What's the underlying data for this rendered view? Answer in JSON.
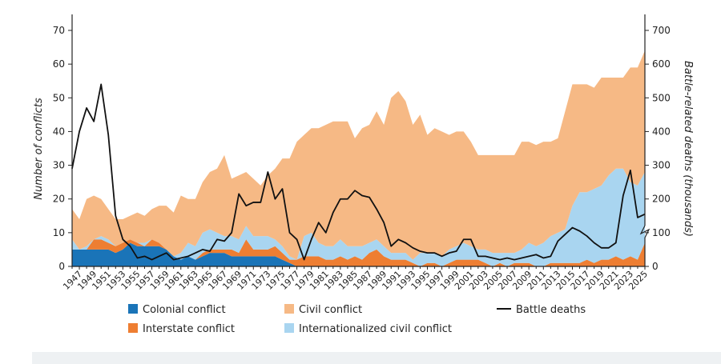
{
  "chart_data": {
    "type": "area",
    "ylabel": "Number of conflicts",
    "y2label": "Battle-related deaths (thousands)",
    "ylim": [
      0,
      70
    ],
    "y2lim": [
      0,
      700
    ],
    "yticks": [
      "0",
      "10",
      "20",
      "30",
      "40",
      "50",
      "60",
      "70"
    ],
    "y2ticks": [
      "0",
      "100",
      "200",
      "300",
      "400",
      "500",
      "600",
      "700"
    ],
    "x_tick_labels": [
      "1947",
      "1949",
      "1951",
      "1953",
      "1955",
      "1957",
      "1959",
      "1961",
      "1963",
      "1965",
      "1967",
      "1969",
      "1971",
      "1973",
      "1975",
      "1977",
      "1979",
      "1981",
      "1983",
      "1985",
      "1987",
      "1989",
      "1991",
      "1993",
      "1995",
      "1997",
      "1999",
      "2001",
      "2003",
      "2005",
      "2007",
      "2009",
      "2011",
      "2013",
      "2015",
      "2017",
      "2019",
      "2021",
      "2023",
      "2025"
    ],
    "x": [
      1946,
      1947,
      1948,
      1949,
      1950,
      1951,
      1952,
      1953,
      1954,
      1955,
      1956,
      1957,
      1958,
      1959,
      1960,
      1961,
      1962,
      1963,
      1964,
      1965,
      1966,
      1967,
      1968,
      1969,
      1970,
      1971,
      1972,
      1973,
      1974,
      1975,
      1976,
      1977,
      1978,
      1979,
      1980,
      1981,
      1982,
      1983,
      1984,
      1985,
      1986,
      1987,
      1988,
      1989,
      1990,
      1991,
      1992,
      1993,
      1994,
      1995,
      1996,
      1997,
      1998,
      1999,
      2000,
      2001,
      2002,
      2003,
      2004,
      2005,
      2006,
      2007,
      2008,
      2009,
      2010,
      2011,
      2012,
      2013,
      2014,
      2015,
      2016,
      2017,
      2018,
      2019,
      2020,
      2021,
      2022,
      2023,
      2024,
      2025
    ],
    "stacked": true,
    "series": [
      {
        "name": "Colonial conflict",
        "color": "#1a74b8",
        "values": [
          5,
          5,
          5,
          5,
          5,
          5,
          4,
          5,
          7,
          6,
          6,
          6,
          6,
          5,
          3,
          2,
          3,
          2,
          3,
          4,
          4,
          4,
          3,
          3,
          3,
          3,
          3,
          3,
          3,
          2,
          1,
          0,
          0,
          0,
          0,
          0,
          0,
          0,
          0,
          0,
          0,
          0,
          0,
          0,
          0,
          0,
          0,
          0,
          0,
          0,
          0,
          0,
          0,
          0,
          0,
          0,
          0,
          0,
          0,
          0,
          0,
          0,
          0,
          0,
          0,
          0,
          0,
          0,
          0,
          0,
          0,
          0,
          0,
          0,
          0,
          0,
          0,
          0,
          0,
          0
        ]
      },
      {
        "name": "Interstate conflict",
        "color": "#ee7e32",
        "values": [
          0,
          0,
          0,
          3,
          3,
          2,
          2,
          2,
          1,
          1,
          0,
          2,
          1,
          0,
          0,
          0,
          0,
          0,
          1,
          1,
          1,
          1,
          2,
          1,
          5,
          2,
          2,
          2,
          3,
          2,
          1,
          2,
          3,
          3,
          3,
          2,
          2,
          3,
          2,
          3,
          2,
          4,
          5,
          3,
          2,
          2,
          2,
          1,
          0,
          1,
          1,
          0,
          1,
          2,
          2,
          2,
          2,
          1,
          0,
          1,
          0,
          1,
          1,
          1,
          0,
          0,
          1,
          1,
          1,
          1,
          1,
          2,
          1,
          2,
          2,
          3,
          2,
          3,
          2,
          7
        ]
      },
      {
        "name": "Internationalized civil conflict",
        "color": "#a9d5f0",
        "values": [
          3,
          0,
          1,
          0,
          1,
          1,
          0,
          0,
          0,
          0,
          1,
          0,
          0,
          0,
          0,
          2,
          4,
          4,
          6,
          6,
          5,
          4,
          4,
          4,
          4,
          4,
          4,
          4,
          2,
          2,
          1,
          0,
          6,
          7,
          4,
          4,
          4,
          5,
          4,
          3,
          4,
          3,
          3,
          3,
          2,
          2,
          2,
          1,
          4,
          3,
          3,
          3,
          4,
          4,
          5,
          4,
          3,
          4,
          4,
          3,
          4,
          3,
          4,
          6,
          6,
          7,
          8,
          9,
          10,
          17,
          21,
          20,
          22,
          22,
          25,
          26,
          27,
          22,
          22,
          21
        ]
      },
      {
        "name": "Civil conflict",
        "color": "#f6b985",
        "values": [
          9,
          9,
          14,
          13,
          11,
          9,
          8,
          7,
          7,
          9,
          8,
          9,
          11,
          13,
          13,
          17,
          13,
          14,
          15,
          17,
          19,
          24,
          17,
          19,
          16,
          17,
          15,
          18,
          21,
          26,
          29,
          35,
          30,
          31,
          34,
          36,
          37,
          35,
          37,
          32,
          35,
          35,
          38,
          36,
          46,
          48,
          45,
          40,
          41,
          35,
          37,
          37,
          34,
          34,
          33,
          31,
          28,
          28,
          29,
          29,
          29,
          29,
          32,
          30,
          30,
          30,
          28,
          28,
          35,
          36,
          32,
          32,
          30,
          32,
          29,
          27,
          27,
          34,
          35,
          36
        ]
      },
      {
        "name": "Battle deaths",
        "color": "#111111",
        "axis": "right",
        "values": [
          290,
          400,
          470,
          430,
          540,
          390,
          150,
          80,
          60,
          25,
          30,
          20,
          30,
          40,
          20,
          25,
          30,
          40,
          50,
          45,
          80,
          75,
          100,
          215,
          180,
          190,
          190,
          280,
          200,
          230,
          100,
          80,
          20,
          80,
          130,
          100,
          160,
          200,
          200,
          225,
          210,
          205,
          170,
          130,
          60,
          80,
          70,
          55,
          45,
          40,
          40,
          30,
          40,
          45,
          80,
          80,
          30,
          30,
          25,
          20,
          25,
          20,
          25,
          30,
          35,
          25,
          30,
          75,
          95,
          115,
          105,
          90,
          70,
          55,
          55,
          70,
          210,
          285,
          145,
          155
        ]
      }
    ],
    "legend": [
      "Colonial conflict",
      "Interstate conflict",
      "Civil conflict",
      "Internationalized civil conflict",
      "Battle deaths"
    ],
    "legend_position": "bottom",
    "grid": false
  }
}
